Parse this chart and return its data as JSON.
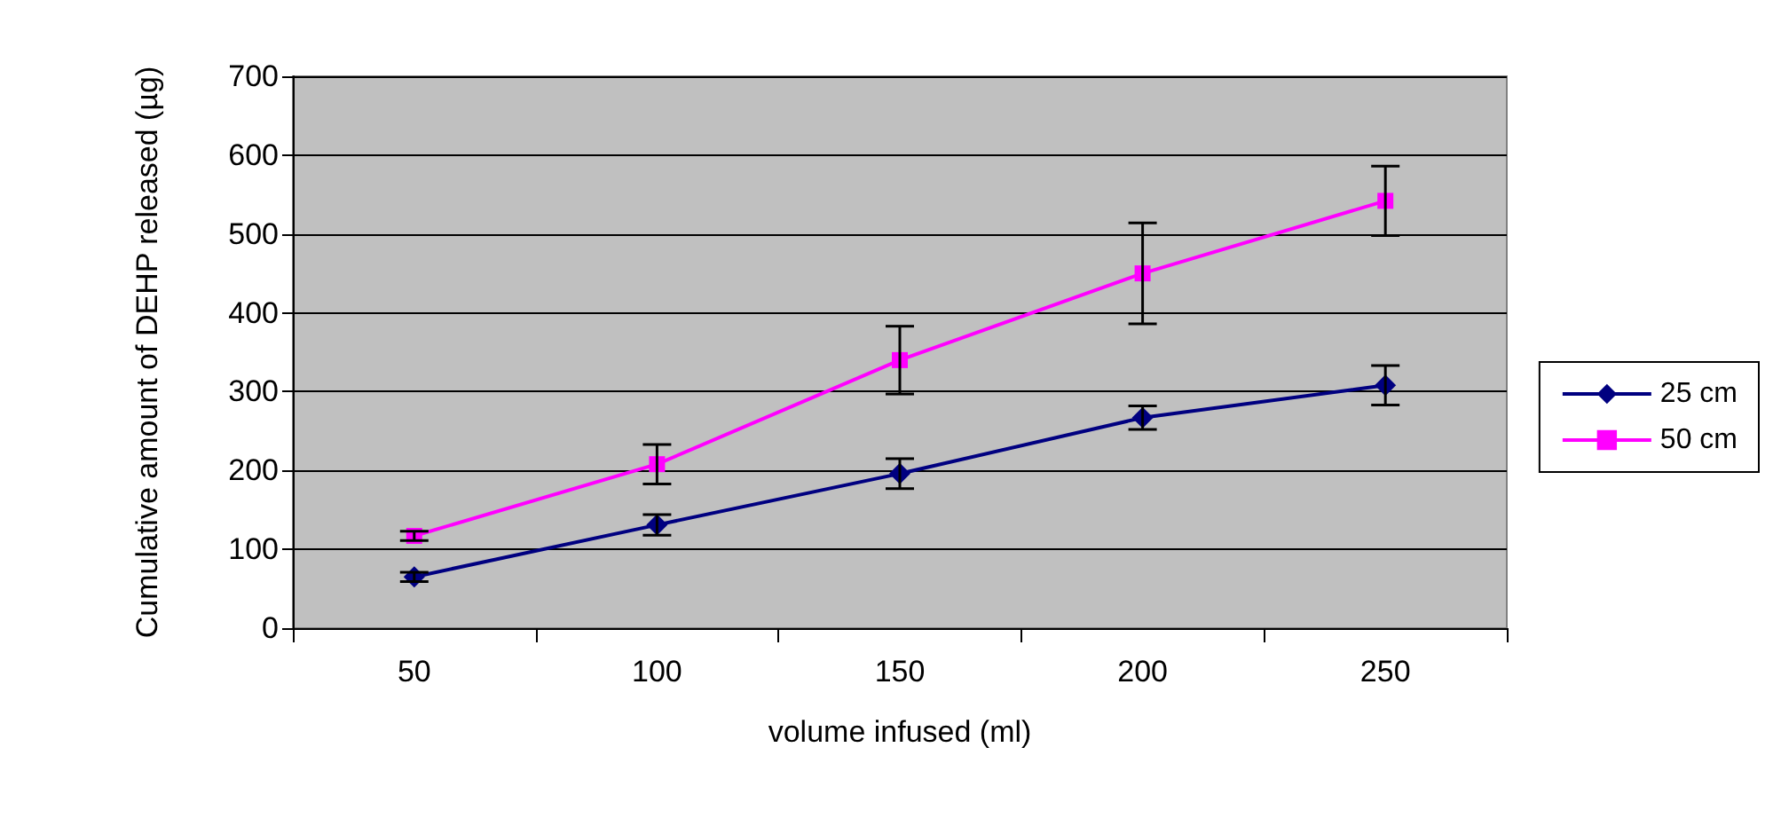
{
  "chart_data": {
    "type": "line",
    "xlabel": "volume infused (ml)",
    "ylabel": "Cumulative amount of DEHP released (µg)",
    "categories": [
      "50",
      "100",
      "150",
      "200",
      "250"
    ],
    "ylim": [
      0,
      700
    ],
    "yticks": [
      0,
      100,
      200,
      300,
      400,
      500,
      600,
      700
    ],
    "grid": "y",
    "legend": "right",
    "series": [
      {
        "name": "25 cm",
        "color": "#000080",
        "marker": "diamond",
        "values": [
          65,
          131,
          196,
          267,
          308
        ],
        "errors": [
          6,
          13,
          19,
          15,
          25
        ]
      },
      {
        "name": "50 cm",
        "color": "#ff00ff",
        "marker": "square",
        "values": [
          117,
          208,
          340,
          450,
          542
        ],
        "errors": [
          6,
          25,
          43,
          64,
          44
        ]
      }
    ]
  }
}
